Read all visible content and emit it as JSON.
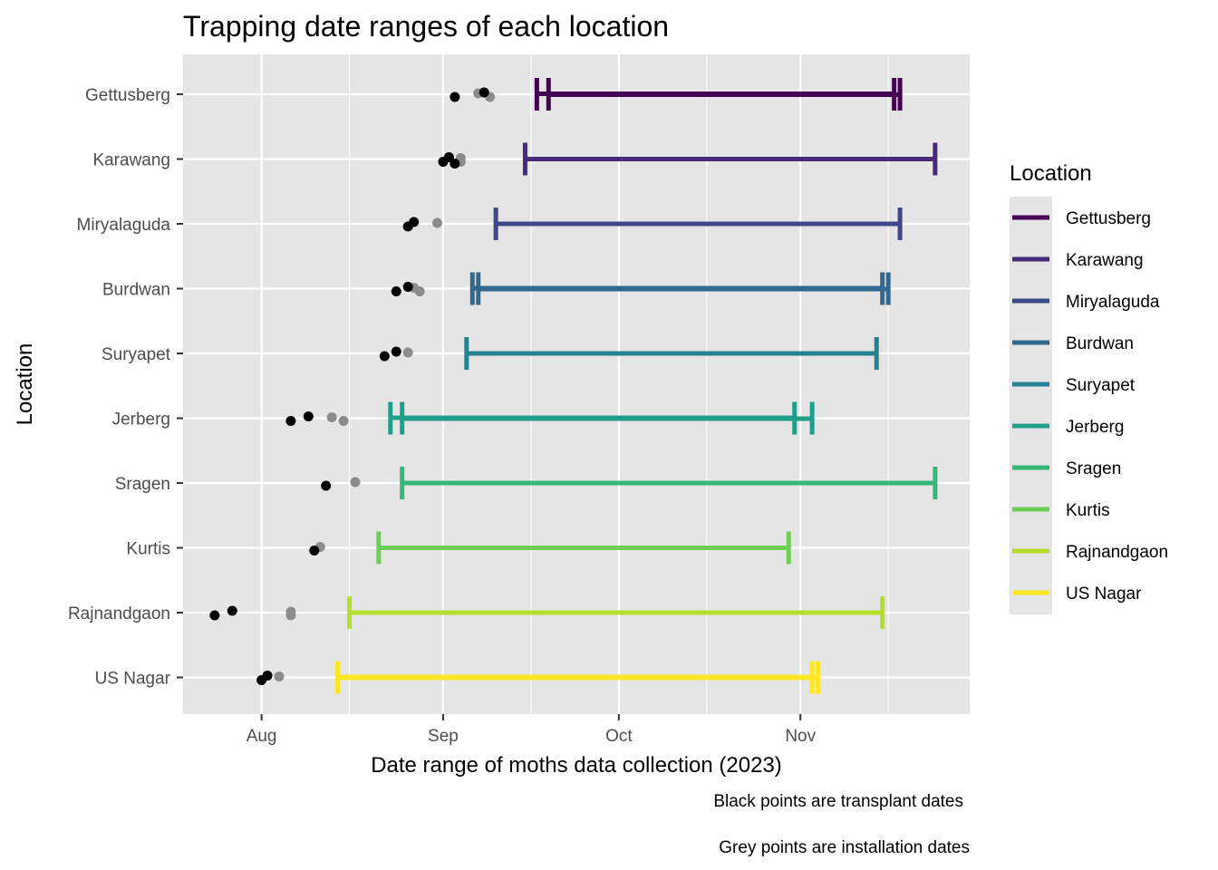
{
  "chart_data": {
    "type": "range",
    "title": "Trapping date ranges of each location",
    "xlabel": "Date range of moths data collection (2023)",
    "ylabel": "Location",
    "xlim": [
      "2023-07-18",
      "2023-11-30"
    ],
    "x_ticks": [
      {
        "date": "2023-08-01",
        "label": "Aug"
      },
      {
        "date": "2023-09-01",
        "label": "Sep"
      },
      {
        "date": "2023-10-01",
        "label": "Oct"
      },
      {
        "date": "2023-11-01",
        "label": "Nov"
      }
    ],
    "x_minor_ticks": [
      "2023-08-16",
      "2023-09-16",
      "2023-10-16",
      "2023-11-16"
    ],
    "grid": true,
    "panel_color": "#e5e5e5",
    "legend": {
      "title": "Location",
      "position": "right",
      "entries": [
        {
          "label": "Gettusberg",
          "color": "#440154"
        },
        {
          "label": "Karawang",
          "color": "#482878"
        },
        {
          "label": "Miryalaguda",
          "color": "#3e4989"
        },
        {
          "label": "Burdwan",
          "color": "#31688e"
        },
        {
          "label": "Suryapet",
          "color": "#26828e"
        },
        {
          "label": "Jerberg",
          "color": "#1f9e89"
        },
        {
          "label": "Sragen",
          "color": "#35b779"
        },
        {
          "label": "Kurtis",
          "color": "#6ece58"
        },
        {
          "label": "Rajnandgaon",
          "color": "#b5de2b"
        },
        {
          "label": "US Nagar",
          "color": "#fde725"
        }
      ]
    },
    "series": [
      {
        "location": "US Nagar",
        "color": "#fde725",
        "ranges": [
          {
            "start": "2023-08-14",
            "end": "2023-11-03"
          },
          {
            "start": "2023-08-14",
            "end": "2023-11-04"
          }
        ],
        "transplant": [
          "2023-08-01",
          "2023-08-02"
        ],
        "installation": [
          "2023-08-04"
        ]
      },
      {
        "location": "Rajnandgaon",
        "color": "#b5de2b",
        "ranges": [
          {
            "start": "2023-08-16",
            "end": "2023-11-15"
          }
        ],
        "transplant": [
          "2023-07-24",
          "2023-07-27"
        ],
        "installation": [
          "2023-08-06",
          "2023-08-06"
        ]
      },
      {
        "location": "Kurtis",
        "color": "#6ece58",
        "ranges": [
          {
            "start": "2023-08-21",
            "end": "2023-10-30"
          }
        ],
        "transplant": [
          "2023-08-10"
        ],
        "installation": [
          "2023-08-11"
        ]
      },
      {
        "location": "Sragen",
        "color": "#35b779",
        "ranges": [
          {
            "start": "2023-08-25",
            "end": "2023-11-24"
          }
        ],
        "transplant": [
          "2023-08-12"
        ],
        "installation": [
          "2023-08-17"
        ]
      },
      {
        "location": "Jerberg",
        "color": "#1f9e89",
        "ranges": [
          {
            "start": "2023-08-23",
            "end": "2023-10-31"
          },
          {
            "start": "2023-08-25",
            "end": "2023-11-03"
          }
        ],
        "transplant": [
          "2023-08-06",
          "2023-08-09"
        ],
        "installation": [
          "2023-08-13",
          "2023-08-15"
        ]
      },
      {
        "location": "Suryapet",
        "color": "#26828e",
        "ranges": [
          {
            "start": "2023-09-05",
            "end": "2023-11-14"
          }
        ],
        "transplant": [
          "2023-08-22",
          "2023-08-24"
        ],
        "installation": [
          "2023-08-26"
        ]
      },
      {
        "location": "Burdwan",
        "color": "#31688e",
        "ranges": [
          {
            "start": "2023-09-06",
            "end": "2023-11-15"
          },
          {
            "start": "2023-09-07",
            "end": "2023-11-16"
          }
        ],
        "transplant": [
          "2023-08-24",
          "2023-08-26"
        ],
        "installation": [
          "2023-08-27",
          "2023-08-28"
        ]
      },
      {
        "location": "Miryalaguda",
        "color": "#3e4989",
        "ranges": [
          {
            "start": "2023-09-10",
            "end": "2023-11-18"
          }
        ],
        "transplant": [
          "2023-08-26",
          "2023-08-27"
        ],
        "installation": [
          "2023-08-31"
        ]
      },
      {
        "location": "Karawang",
        "color": "#482878",
        "ranges": [
          {
            "start": "2023-09-15",
            "end": "2023-11-24"
          }
        ],
        "transplant": [
          "2023-09-01",
          "2023-09-02",
          "2023-09-03"
        ],
        "installation": [
          "2023-09-04",
          "2023-09-04"
        ]
      },
      {
        "location": "Gettusberg",
        "color": "#440154",
        "ranges": [
          {
            "start": "2023-09-17",
            "end": "2023-11-17"
          },
          {
            "start": "2023-09-19",
            "end": "2023-11-18"
          }
        ],
        "transplant": [
          "2023-09-03",
          "2023-09-08"
        ],
        "installation": [
          "2023-09-07",
          "2023-09-09"
        ]
      }
    ],
    "point_colors": {
      "transplant": "#000000",
      "installation": "#8c8c8c"
    },
    "captions": [
      "Black points are transplant dates",
      "Grey points are installation dates"
    ]
  }
}
